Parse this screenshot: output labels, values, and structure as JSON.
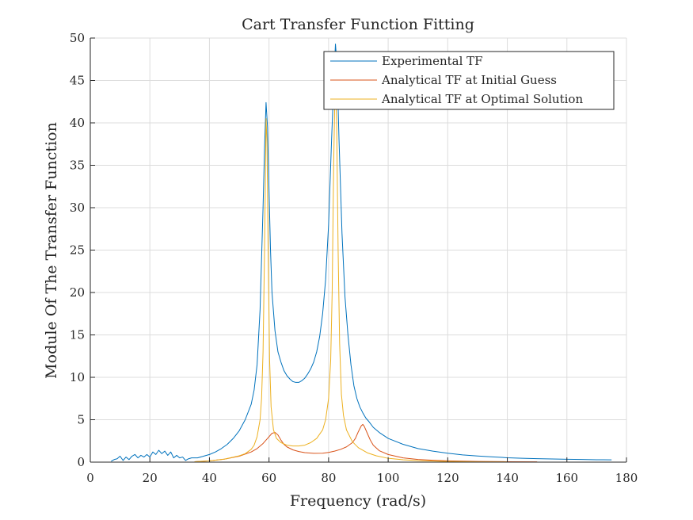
{
  "chart_data": {
    "type": "line",
    "title": "Cart Transfer Function Fitting",
    "xlabel": "Frequency (rad/s)",
    "ylabel": "Module Of The Transfer Function",
    "xlim": [
      0,
      180
    ],
    "ylim": [
      0,
      50
    ],
    "xticks": [
      0,
      20,
      40,
      60,
      80,
      100,
      120,
      140,
      160,
      180
    ],
    "yticks": [
      0,
      5,
      10,
      15,
      20,
      25,
      30,
      35,
      40,
      45,
      50
    ],
    "grid": true,
    "legend_position": "top-right",
    "series": [
      {
        "name": "Experimental TF",
        "color": "#0072BD",
        "points": [
          [
            7,
            0.1
          ],
          [
            8,
            0.3
          ],
          [
            9,
            0.4
          ],
          [
            10,
            0.7
          ],
          [
            11,
            0.2
          ],
          [
            12,
            0.6
          ],
          [
            13,
            0.3
          ],
          [
            14,
            0.7
          ],
          [
            15,
            0.9
          ],
          [
            16,
            0.5
          ],
          [
            17,
            0.8
          ],
          [
            18,
            0.6
          ],
          [
            19,
            0.9
          ],
          [
            20,
            0.6
          ],
          [
            21,
            1.2
          ],
          [
            22,
            0.9
          ],
          [
            23,
            1.4
          ],
          [
            24,
            1.0
          ],
          [
            25,
            1.3
          ],
          [
            26,
            0.8
          ],
          [
            27,
            1.2
          ],
          [
            28,
            0.5
          ],
          [
            29,
            0.8
          ],
          [
            30,
            0.5
          ],
          [
            31,
            0.6
          ],
          [
            32,
            0.2
          ],
          [
            33,
            0.4
          ],
          [
            34,
            0.5
          ],
          [
            36,
            0.5
          ],
          [
            38,
            0.7
          ],
          [
            40,
            0.9
          ],
          [
            42,
            1.2
          ],
          [
            44,
            1.6
          ],
          [
            46,
            2.1
          ],
          [
            48,
            2.8
          ],
          [
            50,
            3.7
          ],
          [
            52,
            5.0
          ],
          [
            54,
            6.8
          ],
          [
            55,
            8.5
          ],
          [
            56,
            11.5
          ],
          [
            57,
            18.0
          ],
          [
            58,
            30.0
          ],
          [
            58.5,
            37.0
          ],
          [
            59,
            42.4
          ],
          [
            59.5,
            39.5
          ],
          [
            60,
            32.0
          ],
          [
            60.5,
            25.0
          ],
          [
            61,
            20.0
          ],
          [
            62,
            15.5
          ],
          [
            63,
            13.0
          ],
          [
            64,
            11.8
          ],
          [
            65,
            10.8
          ],
          [
            66,
            10.2
          ],
          [
            67,
            9.8
          ],
          [
            68,
            9.5
          ],
          [
            69,
            9.4
          ],
          [
            70,
            9.4
          ],
          [
            71,
            9.6
          ],
          [
            72,
            9.9
          ],
          [
            73,
            10.4
          ],
          [
            74,
            11.0
          ],
          [
            75,
            11.8
          ],
          [
            76,
            13.0
          ],
          [
            77,
            14.8
          ],
          [
            78,
            17.5
          ],
          [
            79,
            21.5
          ],
          [
            80,
            28.0
          ],
          [
            81,
            38.0
          ],
          [
            82,
            47.0
          ],
          [
            82.3,
            49.3
          ],
          [
            82.8,
            47.0
          ],
          [
            83.5,
            38.0
          ],
          [
            84.5,
            27.0
          ],
          [
            85.5,
            19.5
          ],
          [
            86.5,
            15.0
          ],
          [
            87.5,
            11.5
          ],
          [
            88.5,
            9.0
          ],
          [
            89.5,
            7.5
          ],
          [
            90.5,
            6.5
          ],
          [
            91.5,
            5.8
          ],
          [
            92.5,
            5.2
          ],
          [
            93.5,
            4.8
          ],
          [
            95,
            4.1
          ],
          [
            97,
            3.5
          ],
          [
            100,
            2.8
          ],
          [
            105,
            2.1
          ],
          [
            110,
            1.6
          ],
          [
            115,
            1.3
          ],
          [
            120,
            1.05
          ],
          [
            125,
            0.85
          ],
          [
            130,
            0.72
          ],
          [
            135,
            0.62
          ],
          [
            140,
            0.52
          ],
          [
            145,
            0.46
          ],
          [
            150,
            0.41
          ],
          [
            155,
            0.37
          ],
          [
            160,
            0.34
          ],
          [
            165,
            0.31
          ],
          [
            170,
            0.28
          ],
          [
            175,
            0.27
          ]
        ]
      },
      {
        "name": "Analytical TF at Initial Guess",
        "color": "#D95319",
        "points": [
          [
            35,
            0.05
          ],
          [
            40,
            0.15
          ],
          [
            45,
            0.35
          ],
          [
            50,
            0.7
          ],
          [
            54,
            1.2
          ],
          [
            56,
            1.6
          ],
          [
            58,
            2.2
          ],
          [
            59,
            2.6
          ],
          [
            60,
            3.0
          ],
          [
            61,
            3.4
          ],
          [
            62,
            3.5
          ],
          [
            63,
            3.2
          ],
          [
            64,
            2.6
          ],
          [
            65,
            2.1
          ],
          [
            66,
            1.8
          ],
          [
            68,
            1.45
          ],
          [
            70,
            1.25
          ],
          [
            72,
            1.12
          ],
          [
            75,
            1.04
          ],
          [
            78,
            1.05
          ],
          [
            80,
            1.15
          ],
          [
            82,
            1.3
          ],
          [
            84,
            1.5
          ],
          [
            86,
            1.8
          ],
          [
            88,
            2.3
          ],
          [
            89,
            2.8
          ],
          [
            90,
            3.6
          ],
          [
            91,
            4.3
          ],
          [
            91.5,
            4.45
          ],
          [
            92,
            4.2
          ],
          [
            93,
            3.4
          ],
          [
            94,
            2.6
          ],
          [
            95,
            2.0
          ],
          [
            97,
            1.35
          ],
          [
            100,
            0.9
          ],
          [
            105,
            0.5
          ],
          [
            110,
            0.32
          ],
          [
            115,
            0.22
          ],
          [
            120,
            0.15
          ],
          [
            130,
            0.08
          ],
          [
            140,
            0.05
          ],
          [
            150,
            0.03
          ]
        ]
      },
      {
        "name": "Analytical TF at Optimal Solution",
        "color": "#EDB120",
        "points": [
          [
            35,
            0.05
          ],
          [
            40,
            0.15
          ],
          [
            45,
            0.35
          ],
          [
            50,
            0.75
          ],
          [
            52,
            1.0
          ],
          [
            54,
            1.5
          ],
          [
            55,
            2.0
          ],
          [
            56,
            3.0
          ],
          [
            57,
            5.0
          ],
          [
            57.5,
            7.5
          ],
          [
            58,
            13.0
          ],
          [
            58.5,
            25.0
          ],
          [
            59,
            40.5
          ],
          [
            59.3,
            38.0
          ],
          [
            59.7,
            25.0
          ],
          [
            60.2,
            12.0
          ],
          [
            60.7,
            6.5
          ],
          [
            61.5,
            3.8
          ],
          [
            62.5,
            2.8
          ],
          [
            64,
            2.3
          ],
          [
            66,
            2.0
          ],
          [
            68,
            1.9
          ],
          [
            70,
            1.9
          ],
          [
            72,
            2.0
          ],
          [
            74,
            2.3
          ],
          [
            76,
            2.8
          ],
          [
            78,
            3.8
          ],
          [
            79,
            5.0
          ],
          [
            80,
            7.5
          ],
          [
            80.7,
            12.0
          ],
          [
            81.2,
            20.0
          ],
          [
            81.7,
            35.0
          ],
          [
            82.2,
            45.0
          ],
          [
            82.7,
            40.0
          ],
          [
            83.2,
            25.0
          ],
          [
            83.7,
            14.0
          ],
          [
            84.3,
            8.0
          ],
          [
            85,
            5.5
          ],
          [
            86,
            3.8
          ],
          [
            88,
            2.4
          ],
          [
            90,
            1.7
          ],
          [
            93,
            1.1
          ],
          [
            96,
            0.75
          ],
          [
            100,
            0.45
          ],
          [
            105,
            0.28
          ],
          [
            110,
            0.18
          ],
          [
            120,
            0.08
          ],
          [
            130,
            0.04
          ],
          [
            140,
            0.02
          ]
        ]
      }
    ]
  }
}
